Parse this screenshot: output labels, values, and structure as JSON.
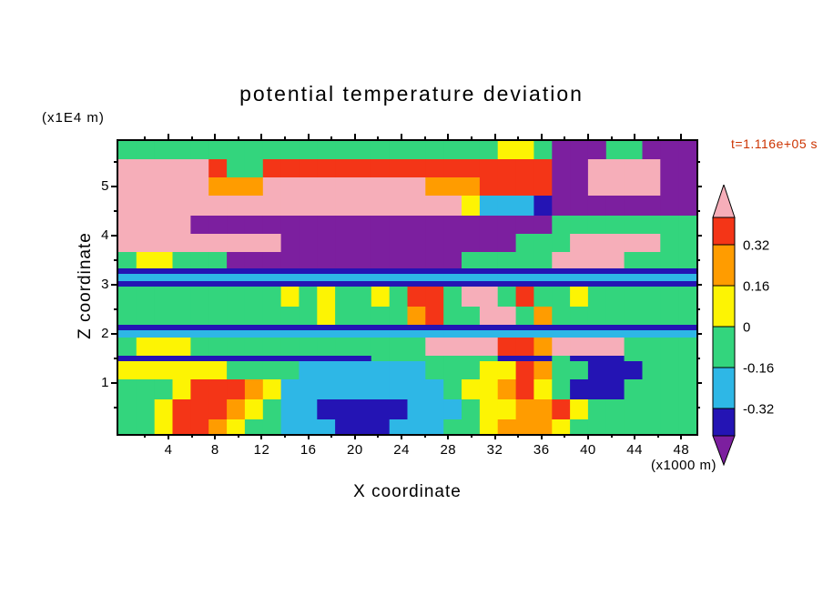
{
  "figure": {
    "title": "potential temperature deviation",
    "y_units_label": "(x1E4 m)",
    "x_units_label": "(x1000 m)",
    "x_axis_label": "X coordinate",
    "y_axis_label": "Z coordinate",
    "time_label": "t=1.116e+05 s",
    "time_label_color": "#cc3300",
    "background": "#ffffff",
    "frame_color": "#000000"
  },
  "chart_data": {
    "type": "heatmap",
    "title": "potential temperature deviation",
    "xlabel": "X coordinate",
    "ylabel": "Z coordinate",
    "x_units": "x1000 m",
    "y_units": "x1E4 m",
    "time_annotation": "t=1.116e+05 s",
    "x_ticks": [
      4,
      8,
      12,
      16,
      20,
      24,
      28,
      32,
      36,
      40,
      44,
      48
    ],
    "x_minor_ticks": [
      2,
      6,
      10,
      14,
      18,
      22,
      26,
      30,
      34,
      38,
      42,
      46
    ],
    "y_ticks": [
      1,
      2,
      3,
      4,
      5
    ],
    "y_minor_ticks": [
      0.5,
      1.5,
      2.5,
      3.5,
      4.5,
      5.5
    ],
    "x_range": [
      -0.3,
      49.3
    ],
    "y_range": [
      -0.04,
      5.92
    ],
    "grid": false,
    "legend_position": "right",
    "colorbar": {
      "levels": [
        -0.48,
        -0.32,
        -0.16,
        0,
        0.16,
        0.32,
        0.48
      ],
      "tick_labels": [
        "0.32",
        "0.16",
        "0",
        "-0.16",
        "-0.32"
      ],
      "arrow_top": {
        "color": "#f6aeb9",
        "meaning": "> 0.48"
      },
      "arrow_bottom": {
        "color": "#7c1f9f",
        "meaning": "< -0.48"
      },
      "segments": [
        {
          "color": "#f43517",
          "range": [
            0.32,
            0.48
          ],
          "label_at_bottom": "0.32"
        },
        {
          "color": "#ff9c00",
          "range": [
            0.16,
            0.32
          ],
          "label_at_bottom": "0.16"
        },
        {
          "color": "#fdf403",
          "range": [
            0,
            0.16
          ],
          "label_at_bottom": "0"
        },
        {
          "color": "#33d57d",
          "range": [
            -0.16,
            0
          ],
          "label_at_bottom": "-0.16"
        },
        {
          "color": "#2eb7e6",
          "range": [
            -0.32,
            -0.16
          ],
          "label_at_bottom": "-0.32"
        },
        {
          "color": "#2414b4",
          "range": [
            -0.48,
            -0.32
          ],
          "label_at_bottom": ""
        }
      ]
    },
    "palette": {
      "P": "#f6aeb9",
      "R": "#f43517",
      "O": "#ff9c00",
      "Y": "#fdf403",
      "G": "#33d57d",
      "C": "#2eb7e6",
      "B": "#2414b4",
      "V": "#7c1f9f"
    },
    "field": {
      "cols": 32,
      "note": "coarse band approximation of filled contours; P pink >0.48, R red, O orange, Y yellow, G green, C cyan, B dark blue, V purple <-0.48",
      "rows": [
        {
          "h": 20,
          "cells": "GGGGGGGGGGGGGGGGGGGGGYYGVVVGGVVV"
        },
        {
          "h": 20,
          "cells": "PPPPPRGGRRRRRRRRRRRRRRRRVVPPPPVV"
        },
        {
          "h": 20,
          "cells": "PPPPPOOOPPPPPPPPPOOORRRRVVPPPPVV"
        },
        {
          "h": 22,
          "cells": "PPPPPPPPPPPPPPPPPPPYCCCBVVVVVVVV"
        },
        {
          "h": 20,
          "cells": "PPPPVVVVVVVVVVVVVVVVVVVVGGGGGGGG"
        },
        {
          "h": 20,
          "cells": "PPPPPPPPPVVVVVVVVVVVVVGGGPPPPPGG"
        },
        {
          "h": 18,
          "cells": "GYYGGGVVVVVVVVVVVVVGGGGGPPPPGGGG"
        },
        {
          "h": 6,
          "cells": "BBBBBBBBBBBBBBBBBBBBBBBBBBBBBBBB"
        },
        {
          "h": 8,
          "cells": "CCCCCCCCCCCCCCCCCCCCCCCCCCCCCCCC"
        },
        {
          "h": 6,
          "cells": "BBBBBBBBBBBBBBBBBBBBBBBBBBBBBBBB"
        },
        {
          "h": 22,
          "cells": "GGGGGGGGGYGYGGYGRRGPPGRGGYGGGGGG"
        },
        {
          "h": 20,
          "cells": "GGGGGGGGGGGYGGGGORGGPPGOGGGGGGGG"
        },
        {
          "h": 6,
          "cells": "BBBBBBBBBBBBBBBBBBBBBBBBBBBBBBBB"
        },
        {
          "h": 8,
          "cells": "CCCCCCCCCCCCCCCCCCCCCCCCCCCCCCCC"
        },
        {
          "h": 20,
          "cells": "GYYYGGGGGGGGGGGGGPPPPRROPPPPGGGG"
        },
        {
          "h": 6,
          "cells": "BBBBBBBBBBBBBBGGGGGGGBBBGBBBGGGG"
        },
        {
          "h": 20,
          "cells": "YYYYYYGGGGCCCCCCCGGGYYROGGBBBGGG"
        },
        {
          "h": 22,
          "cells": "GGGYRRROYCCCCCCCCCGYYORYGBBBGGGG"
        },
        {
          "h": 22,
          "cells": "GGYRRROYGCCBBBBBCCCGYYOORYGGGGGG"
        },
        {
          "h": 16,
          "cells": "GGYRROYGGCCCBBBCCCGGYOOOYGGGGGGG"
        }
      ]
    }
  }
}
